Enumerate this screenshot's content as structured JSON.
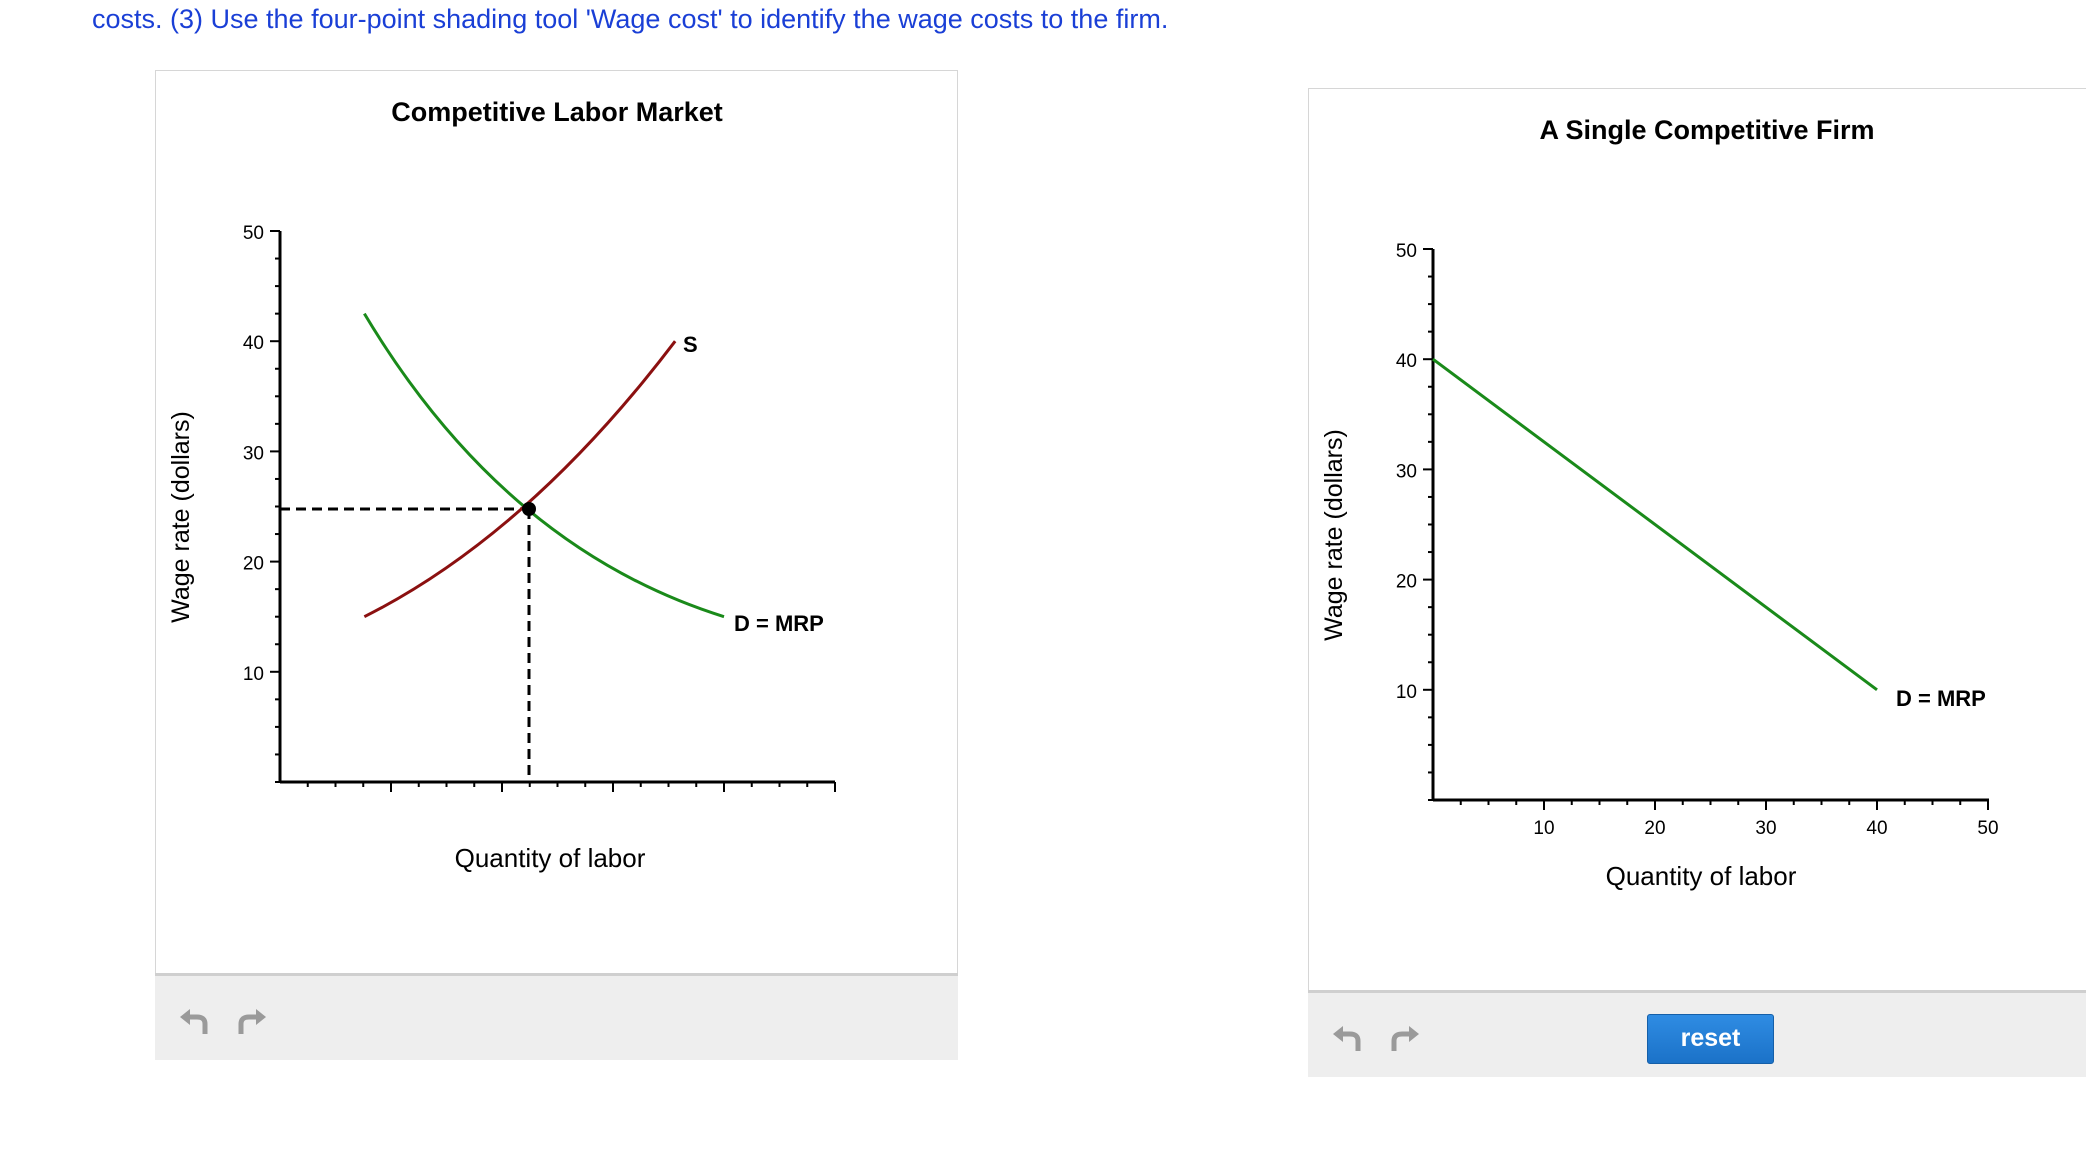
{
  "instructions": "costs. (3) Use the four-point shading tool 'Wage cost' to identify the wage costs to the firm.",
  "colors": {
    "link_text": "#1a3fd6",
    "demand": "#1a8a1a",
    "supply": "#8b1010",
    "reset_button": "#1b72c8"
  },
  "market_panel": {
    "chart_data": {
      "type": "line",
      "title": "Competitive Labor Market",
      "xlabel": "Quantity of labor",
      "ylabel": "Wage rate (dollars)",
      "ylim": [
        0,
        50
      ],
      "y_ticks": [
        10,
        20,
        30,
        40,
        50
      ],
      "y_tick_labels": [
        "10",
        "20",
        "30",
        "40",
        "50"
      ],
      "x_tick_labels": [],
      "grid": false,
      "series": [
        {
          "name": "D = MRP",
          "color": "#1a8a1a",
          "points": [
            [
              7.6,
              42.5
            ],
            [
              22,
              25
            ],
            [
              40,
              15
            ]
          ]
        },
        {
          "name": "S",
          "color": "#8b1010",
          "points": [
            [
              7.6,
              15
            ],
            [
              22,
              25
            ],
            [
              35.6,
              40
            ]
          ]
        }
      ],
      "equilibrium": {
        "wage": 25,
        "marker": "dashed guide lines to both axes"
      }
    }
  },
  "firm_panel": {
    "chart_data": {
      "type": "line",
      "title": "A Single Competitive Firm",
      "xlabel": "Quantity of labor",
      "ylabel": "Wage rate (dollars)",
      "xlim": [
        0,
        50
      ],
      "ylim": [
        0,
        50
      ],
      "x_ticks": [
        10,
        20,
        30,
        40,
        50
      ],
      "x_tick_labels": [
        "10",
        "20",
        "30",
        "40",
        "50"
      ],
      "y_ticks": [
        10,
        20,
        30,
        40,
        50
      ],
      "y_tick_labels": [
        "10",
        "20",
        "30",
        "40",
        "50"
      ],
      "grid": false,
      "series": [
        {
          "name": "D = MRP",
          "color": "#1a8a1a",
          "points": [
            [
              0,
              40
            ],
            [
              40,
              10
            ]
          ]
        }
      ]
    }
  },
  "toolbar": {
    "undo_icon": "undo-icon",
    "redo_icon": "redo-icon",
    "reset_label": "reset"
  }
}
